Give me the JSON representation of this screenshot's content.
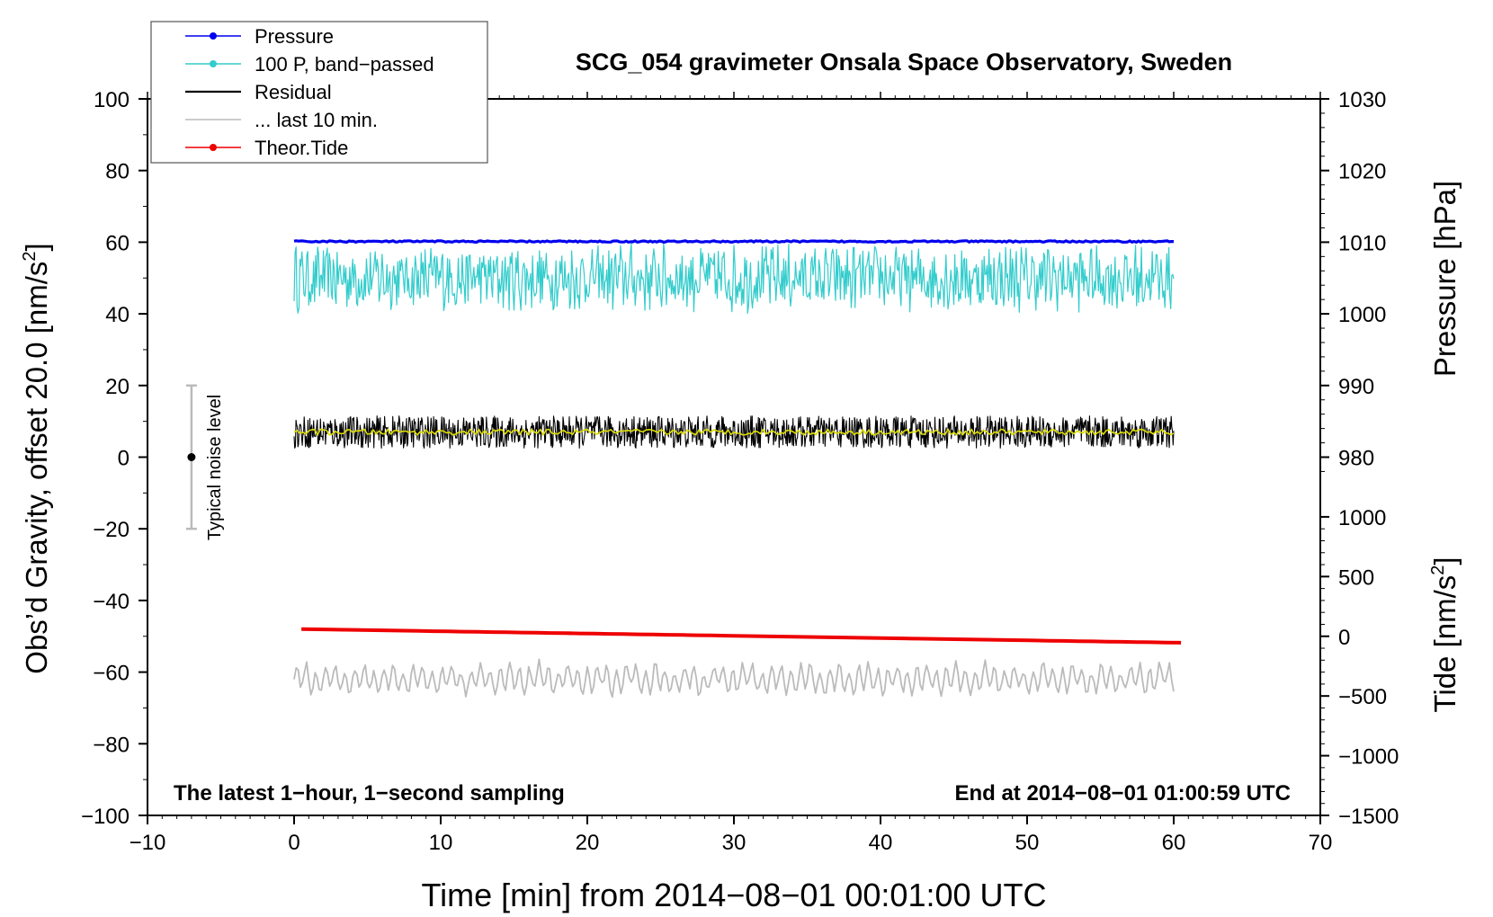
{
  "chart_data": {
    "type": "line",
    "title": "SCG_054 gravimeter Onsala Space Observatory, Sweden",
    "xlabel": "Time [min] from 2014−08−01 00:01:00 UTC",
    "ylabel_left": "Obs’d Gravity, offset 20.0 [nm/s²]",
    "ylabel_left_prefix": "Obs’d Gravity, offset 20.0 [nm/s",
    "ylabel_right_pressure_prefix": "Pressure [hPa]",
    "ylabel_right_tide_prefix": "Tide [nm/s",
    "superscript": "2",
    "bracket_close": "]",
    "xlim": [
      -10,
      70
    ],
    "ylim_left": [
      -100,
      100
    ],
    "x_ticks": [
      -10,
      0,
      10,
      20,
      30,
      40,
      50,
      60,
      70
    ],
    "x_tick_labels": [
      "−10",
      "0",
      "10",
      "20",
      "30",
      "40",
      "50",
      "60",
      "70"
    ],
    "y_ticks_left": [
      100,
      80,
      60,
      40,
      20,
      0,
      -20,
      -40,
      -60,
      -80,
      -100
    ],
    "y_tick_labels_left": [
      "100",
      "80",
      "60",
      "40",
      "20",
      "0",
      "−20",
      "−40",
      "−60",
      "−80",
      "−100"
    ],
    "pressure_axis": {
      "ticks": [
        1030,
        1020,
        1010,
        1000,
        990,
        980
      ],
      "labels": [
        "1030",
        "1020",
        "1010",
        "1000",
        "990",
        "980"
      ],
      "value_at_left_60": 1010,
      "value_at_left_40": 1000
    },
    "tide_axis": {
      "ticks": [
        1000,
        500,
        0,
        -500,
        -1000,
        -1500
      ],
      "labels": [
        "1000",
        "500",
        "0",
        "−500",
        "−1000",
        "−1500"
      ],
      "value_at_left_minus100": -1500,
      "value_at_left_minus50": 0
    },
    "legend": [
      {
        "label": "Pressure",
        "color": "#0000ee",
        "marker": true
      },
      {
        "label": "100 P, band−passed",
        "color": "#33cccc",
        "marker": true
      },
      {
        "label": "Residual",
        "color": "#000000",
        "marker": false
      },
      {
        "label": "... last 10 min.",
        "color": "#bbbbbb",
        "marker": false
      },
      {
        "label": "Theor.Tide",
        "color": "#ee0000",
        "marker": true
      }
    ],
    "series": [
      {
        "name": "Pressure",
        "color": "#0000ee",
        "x_range": [
          0,
          60
        ],
        "level": 60.2,
        "amplitude": 0.4
      },
      {
        "name": "100 P, band-passed",
        "color": "#33cccc",
        "x_range": [
          0,
          60
        ],
        "level": 50,
        "amplitude": 8,
        "min": 34,
        "max": 62
      },
      {
        "name": "Residual",
        "color": "#000000",
        "x_range": [
          0,
          60
        ],
        "level": 7,
        "amplitude": 4.5,
        "min": 1,
        "max": 15
      },
      {
        "name": "Residual smoothed",
        "color": "#dddd00",
        "x_range": [
          0,
          60
        ],
        "level": 7,
        "amplitude": 0.8
      },
      {
        "name": "... last 10 min.",
        "color": "#bbbbbb",
        "x_range": [
          0,
          60
        ],
        "level": -62,
        "amplitude": 3.5,
        "min": -69,
        "max": -55
      },
      {
        "name": "Theor.Tide",
        "color": "#ee0000",
        "x_range": [
          0.5,
          60.5
        ],
        "start": -48,
        "end": -51.8
      }
    ],
    "noise_bar": {
      "label": "Typical noise level",
      "x": -7,
      "center": 0,
      "low": -20,
      "high": 20
    },
    "annotations": {
      "bottom_left": "The latest 1−hour, 1−second sampling",
      "bottom_right": "End at 2014−08−01 01:00:59 UTC"
    }
  }
}
